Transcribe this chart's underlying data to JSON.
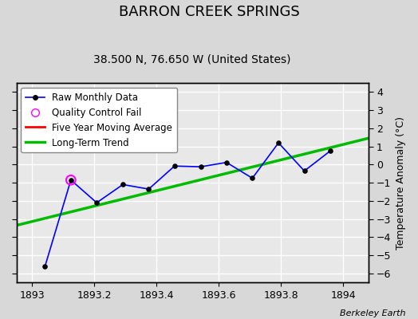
{
  "title": "BARRON CREEK SPRINGS",
  "subtitle": "38.500 N, 76.650 W (United States)",
  "ylabel": "Temperature Anomaly (°C)",
  "credit": "Berkeley Earth",
  "xlim": [
    1892.95,
    1894.08
  ],
  "ylim": [
    -6.5,
    4.5
  ],
  "yticks": [
    -6,
    -5,
    -4,
    -3,
    -2,
    -1,
    0,
    1,
    2,
    3,
    4
  ],
  "xticks": [
    1893.0,
    1893.2,
    1893.4,
    1893.6,
    1893.8,
    1894.0
  ],
  "fig_bg_color": "#d8d8d8",
  "plot_bg_color": "#e8e8e8",
  "grid_color": "#ffffff",
  "raw_x": [
    1893.042,
    1893.125,
    1893.208,
    1893.292,
    1893.375,
    1893.458,
    1893.542,
    1893.625,
    1893.708,
    1893.792,
    1893.875,
    1893.958
  ],
  "raw_y": [
    -5.6,
    -0.85,
    -2.1,
    -1.1,
    -1.35,
    -0.08,
    -0.12,
    0.12,
    -0.75,
    1.2,
    -0.35,
    0.75
  ],
  "qc_fail_x": [
    1893.125
  ],
  "qc_fail_y": [
    -0.85
  ],
  "trend_x": [
    1892.95,
    1894.08
  ],
  "trend_y": [
    -3.35,
    1.45
  ],
  "raw_line_color": "#0000ff",
  "raw_marker_color": "#000000",
  "qc_color": "#ff00ff",
  "trend_color": "#00bb00",
  "moving_avg_color": "#ff0000",
  "title_fontsize": 13,
  "subtitle_fontsize": 10,
  "ylabel_fontsize": 9,
  "tick_fontsize": 9,
  "legend_fontsize": 8.5,
  "credit_fontsize": 8
}
